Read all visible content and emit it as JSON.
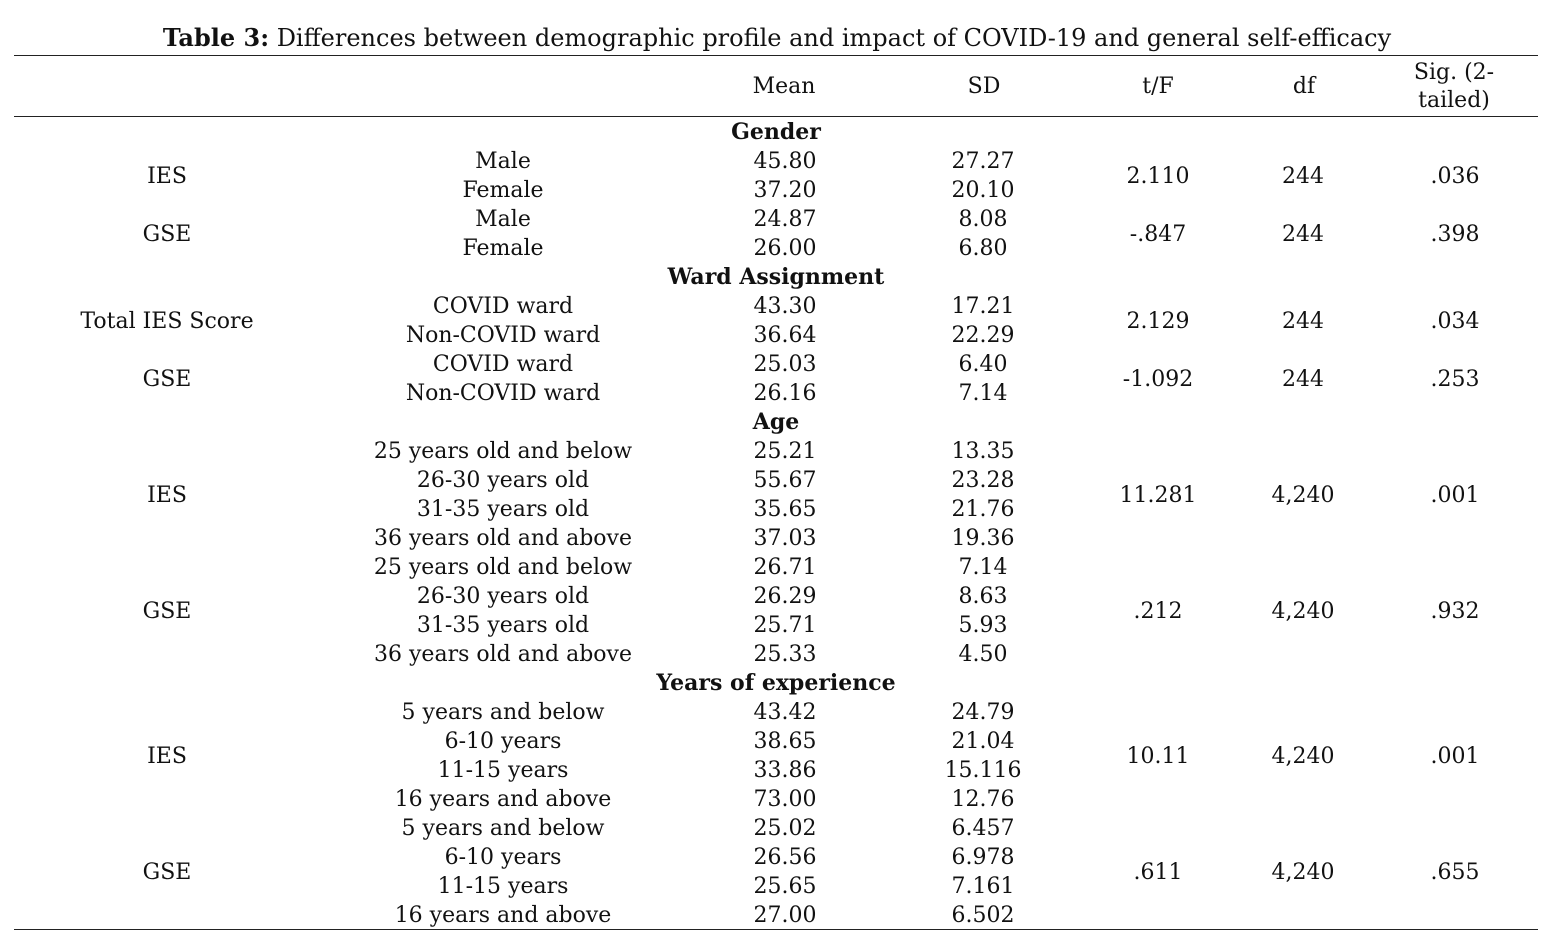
{
  "caption": {
    "label": "Table 3:",
    "text": " Differences between demographic profile and impact of COVID-19 and general self-efficacy"
  },
  "header": {
    "mean": "Mean",
    "sd": "SD",
    "tf": "t/F",
    "df": "df",
    "sig": "Sig. (2-tailed)"
  },
  "sections": [
    {
      "title": "Gender",
      "groups": [
        {
          "measure": "IES",
          "tf": "2.110",
          "df": "244",
          "sig": ".036",
          "rows": [
            {
              "label": "Male",
              "mean": "45.80",
              "sd": "27.27"
            },
            {
              "label": "Female",
              "mean": "37.20",
              "sd": "20.10"
            }
          ]
        },
        {
          "measure": "GSE",
          "tf": "-.847",
          "df": "244",
          "sig": ".398",
          "rows": [
            {
              "label": "Male",
              "mean": "24.87",
              "sd": "8.08"
            },
            {
              "label": "Female",
              "mean": "26.00",
              "sd": "6.80"
            }
          ]
        }
      ]
    },
    {
      "title": "Ward Assignment",
      "groups": [
        {
          "measure": "Total IES Score",
          "tf": "2.129",
          "df": "244",
          "sig": ".034",
          "rows": [
            {
              "label": "COVID ward",
              "mean": "43.30",
              "sd": "17.21"
            },
            {
              "label": "Non-COVID ward",
              "mean": "36.64",
              "sd": "22.29"
            }
          ]
        },
        {
          "measure": "GSE",
          "tf": "-1.092",
          "df": "244",
          "sig": ".253",
          "rows": [
            {
              "label": "COVID ward",
              "mean": "25.03",
              "sd": "6.40"
            },
            {
              "label": "Non-COVID ward",
              "mean": "26.16",
              "sd": "7.14"
            }
          ]
        }
      ]
    },
    {
      "title": "Age",
      "groups": [
        {
          "measure": "IES",
          "tf": "11.281",
          "df": "4,240",
          "sig": ".001",
          "rows": [
            {
              "label": "25 years old and below",
              "mean": "25.21",
              "sd": "13.35"
            },
            {
              "label": "26-30 years old",
              "mean": "55.67",
              "sd": "23.28"
            },
            {
              "label": "31-35 years old",
              "mean": "35.65",
              "sd": "21.76"
            },
            {
              "label": "36 years old and above",
              "mean": "37.03",
              "sd": "19.36"
            }
          ]
        },
        {
          "measure": "GSE",
          "tf": ".212",
          "df": "4,240",
          "sig": ".932",
          "rows": [
            {
              "label": "25 years old and below",
              "mean": "26.71",
              "sd": "7.14"
            },
            {
              "label": "26-30 years old",
              "mean": "26.29",
              "sd": "8.63"
            },
            {
              "label": "31-35 years old",
              "mean": "25.71",
              "sd": "5.93"
            },
            {
              "label": "36 years old and above",
              "mean": "25.33",
              "sd": "4.50"
            }
          ]
        }
      ]
    },
    {
      "title": "Years of experience",
      "groups": [
        {
          "measure": "IES",
          "tf": "10.11",
          "df": "4,240",
          "sig": ".001",
          "rows": [
            {
              "label": "5 years and below",
              "mean": "43.42",
              "sd": "24.79"
            },
            {
              "label": "6-10 years",
              "mean": "38.65",
              "sd": "21.04"
            },
            {
              "label": "11-15 years",
              "mean": "33.86",
              "sd": "15.116"
            },
            {
              "label": "16 years and above",
              "mean": "73.00",
              "sd": "12.76"
            }
          ]
        },
        {
          "measure": "GSE",
          "tf": ".611",
          "df": "4,240",
          "sig": ".655",
          "rows": [
            {
              "label": "5 years and below",
              "mean": "25.02",
              "sd": "6.457"
            },
            {
              "label": "6-10 years",
              "mean": "26.56",
              "sd": "6.978"
            },
            {
              "label": "11-15 years",
              "mean": "25.65",
              "sd": "7.161"
            },
            {
              "label": "16 years and above",
              "mean": "27.00",
              "sd": "6.502"
            }
          ]
        }
      ]
    }
  ]
}
